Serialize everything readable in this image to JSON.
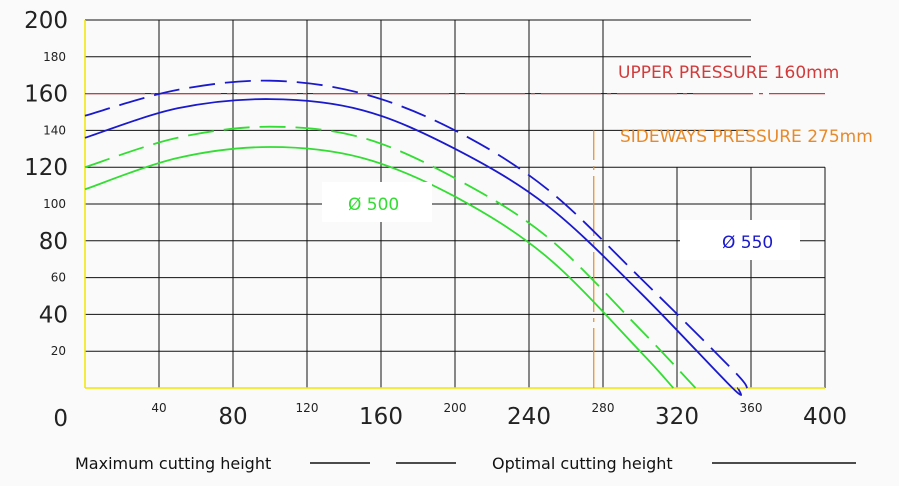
{
  "chart_data": {
    "type": "line",
    "title": "",
    "xlabel": "",
    "ylabel": "",
    "xlim": [
      0,
      400
    ],
    "ylim": [
      0,
      200
    ],
    "grid": true,
    "x_ticks": [
      {
        "value": 0,
        "label": "0",
        "size": "large"
      },
      {
        "value": 40,
        "label": "40",
        "size": "small"
      },
      {
        "value": 80,
        "label": "80",
        "size": "large"
      },
      {
        "value": 120,
        "label": "120",
        "size": "small"
      },
      {
        "value": 160,
        "label": "160",
        "size": "large"
      },
      {
        "value": 200,
        "label": "200",
        "size": "small"
      },
      {
        "value": 240,
        "label": "240",
        "size": "large"
      },
      {
        "value": 280,
        "label": "280",
        "size": "small"
      },
      {
        "value": 320,
        "label": "320",
        "size": "large"
      },
      {
        "value": 360,
        "label": "360",
        "size": "small"
      },
      {
        "value": 400,
        "label": "400",
        "size": "large"
      }
    ],
    "y_ticks": [
      {
        "value": 20,
        "label": "20",
        "size": "small"
      },
      {
        "value": 40,
        "label": "40",
        "size": "large"
      },
      {
        "value": 60,
        "label": "60",
        "size": "small"
      },
      {
        "value": 80,
        "label": "80",
        "size": "large"
      },
      {
        "value": 100,
        "label": "100",
        "size": "small"
      },
      {
        "value": 120,
        "label": "120",
        "size": "large"
      },
      {
        "value": 140,
        "label": "140",
        "size": "small"
      },
      {
        "value": 160,
        "label": "160",
        "size": "large"
      },
      {
        "value": 180,
        "label": "180",
        "size": "small"
      },
      {
        "value": 200,
        "label": "200",
        "size": "large"
      }
    ],
    "series": [
      {
        "group": "Ø 500",
        "style": "dashed",
        "color": "#33dd33",
        "x": [
          0,
          50,
          100,
          150,
          200,
          250,
          300,
          330
        ],
        "y": [
          120,
          136,
          142,
          136,
          114,
          82,
          32,
          0
        ]
      },
      {
        "group": "Ø 500",
        "style": "solid",
        "color": "#33dd33",
        "x": [
          0,
          50,
          100,
          150,
          200,
          250,
          300,
          318
        ],
        "y": [
          108,
          125,
          131,
          125,
          104,
          71,
          20,
          0
        ]
      },
      {
        "group": "Ø 550",
        "style": "dashed",
        "color": "#1a1acc",
        "x": [
          0,
          50,
          100,
          150,
          200,
          250,
          300,
          350,
          358
        ],
        "y": [
          148,
          162,
          167,
          160,
          140,
          108,
          60,
          10,
          0
        ]
      },
      {
        "group": "Ø 550",
        "style": "solid",
        "color": "#1a1acc",
        "x": [
          0,
          50,
          100,
          150,
          200,
          250,
          300,
          350,
          353
        ],
        "y": [
          136,
          152,
          157,
          151,
          130,
          99,
          52,
          0,
          0
        ]
      }
    ],
    "reference_lines": [
      {
        "orientation": "horizontal",
        "value": 160,
        "label": "UPPER PRESSURE 160mm",
        "color": "#d23b3b"
      },
      {
        "orientation": "vertical",
        "value": 275,
        "label": "SIDEWAYS PRESSURE 275mm",
        "color": "#e88a2a"
      }
    ],
    "annotations": [
      {
        "text": "Ø 500",
        "color": "#33dd33"
      },
      {
        "text": "Ø 550",
        "color": "#1a1acc"
      }
    ],
    "legend": [
      {
        "label": "Maximum cutting height",
        "style": "dashed"
      },
      {
        "label": "Optimal cutting height",
        "style": "solid"
      }
    ],
    "colors": {
      "grid": "#111111",
      "axis": "#f2e600",
      "green": "#33dd33",
      "blue": "#1a1acc",
      "upper": "#d23b3b",
      "sideways": "#e88a2a"
    }
  }
}
